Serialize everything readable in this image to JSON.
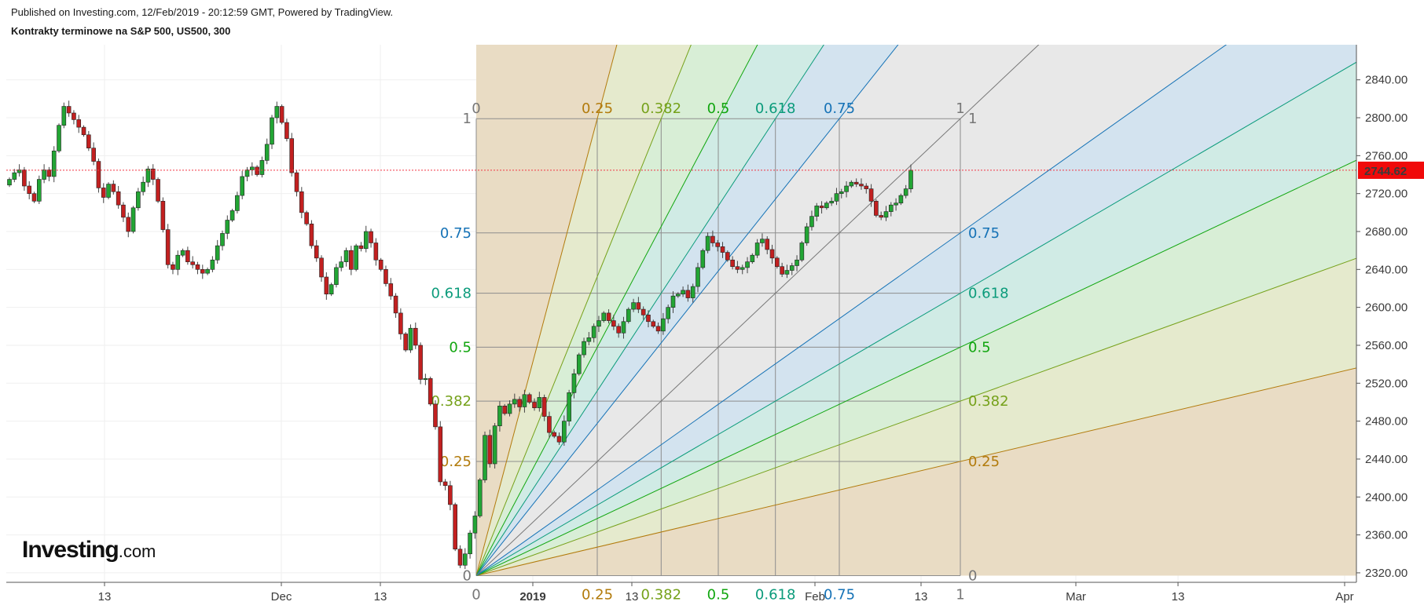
{
  "header": {
    "published": "Published on Investing.com, 12/Feb/2019 - 20:12:59 GMT, Powered by TradingView.",
    "symbol": "Kontrakty terminowe na S&P 500, US500, 300"
  },
  "logo": {
    "brand": "Investing",
    "domain": ".com"
  },
  "chart_data": {
    "type": "candlestick",
    "y_axis": {
      "ticks": [
        "2320.00",
        "2360.00",
        "2400.00",
        "2440.00",
        "2480.00",
        "2520.00",
        "2560.00",
        "2600.00",
        "2640.00",
        "2680.00",
        "2720.00",
        "2760.00",
        "2800.00",
        "2840.00"
      ],
      "range": [
        2310,
        2877
      ],
      "last_price": "2744.62"
    },
    "x_axis": {
      "ticks": [
        {
          "label": "13",
          "bold": false
        },
        {
          "label": "Dec",
          "bold": false
        },
        {
          "label": "13",
          "bold": false
        },
        {
          "label": "2019",
          "bold": true
        },
        {
          "label": "13",
          "bold": false
        },
        {
          "label": "Feb",
          "bold": false
        },
        {
          "label": "13",
          "bold": false
        },
        {
          "label": "Mar",
          "bold": false
        },
        {
          "label": "13",
          "bold": false
        },
        {
          "label": "Apr",
          "bold": false
        }
      ]
    },
    "closes": [
      2735,
      2742,
      2745,
      2728,
      2720,
      2712,
      2735,
      2745,
      2738,
      2765,
      2792,
      2812,
      2805,
      2798,
      2790,
      2782,
      2768,
      2754,
      2726,
      2716,
      2730,
      2722,
      2708,
      2695,
      2680,
      2705,
      2722,
      2732,
      2746,
      2735,
      2712,
      2682,
      2645,
      2640,
      2655,
      2660,
      2648,
      2645,
      2640,
      2636,
      2640,
      2650,
      2665,
      2678,
      2692,
      2702,
      2718,
      2738,
      2745,
      2748,
      2740,
      2755,
      2772,
      2800,
      2812,
      2795,
      2778,
      2742,
      2722,
      2700,
      2688,
      2665,
      2652,
      2632,
      2614,
      2624,
      2642,
      2648,
      2660,
      2640,
      2665,
      2662,
      2680,
      2668,
      2650,
      2640,
      2625,
      2612,
      2594,
      2572,
      2555,
      2578,
      2560,
      2524,
      2525,
      2498,
      2474,
      2416,
      2412,
      2392,
      2345,
      2328,
      2340,
      2362,
      2380,
      2418,
      2465,
      2435,
      2475,
      2496,
      2488,
      2498,
      2503,
      2495,
      2508,
      2500,
      2494,
      2505,
      2485,
      2468,
      2464,
      2458,
      2480,
      2510,
      2530,
      2550,
      2564,
      2568,
      2580,
      2586,
      2594,
      2586,
      2580,
      2573,
      2585,
      2598,
      2605,
      2598,
      2592,
      2585,
      2580,
      2575,
      2588,
      2600,
      2612,
      2614,
      2618,
      2610,
      2622,
      2642,
      2660,
      2675,
      2668,
      2664,
      2658,
      2650,
      2643,
      2640,
      2642,
      2648,
      2655,
      2668,
      2672,
      2661,
      2652,
      2643,
      2635,
      2639,
      2644,
      2650,
      2668,
      2685,
      2696,
      2707,
      2705,
      2710,
      2712,
      2720,
      2722,
      2728,
      2732,
      2730,
      2728,
      2725,
      2712,
      2697,
      2695,
      2701,
      2708,
      2710,
      2718,
      2725,
      2744.62
    ],
    "gann_fan": {
      "ratios": [
        "0.25",
        "0.382",
        "0.5",
        "0.618",
        "0.75",
        "1"
      ],
      "grid_labels": [
        "0",
        "1"
      ],
      "box_low": 2317,
      "box_high": 2799
    }
  },
  "colors": {
    "up": "#22a534",
    "down": "#c22020",
    "price_line": "#f23645",
    "fib_025": "#b27b0c",
    "fib_0382": "#75a11a",
    "fib_05": "#11a60f",
    "fib_0618": "#0b9b7b",
    "fib_075": "#1572b6",
    "fib_1": "#777777"
  }
}
